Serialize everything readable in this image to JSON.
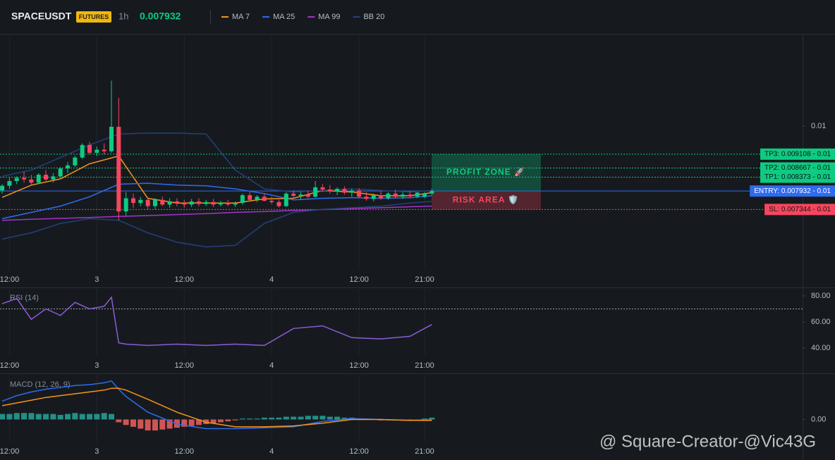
{
  "header": {
    "symbol": "SPACEUSDT",
    "badge": "FUTURES",
    "interval": "1h",
    "last_price": 0.007932
  },
  "watermark": "@ Square-Creator-@Vic43G",
  "chart_data": [
    {
      "type": "candlestick",
      "xlim": [
        -1.3,
        108.9
      ],
      "ylim": [
        0.00542,
        0.0129
      ],
      "xticks": [
        {
          "value": 0,
          "label": "12:00"
        },
        {
          "value": 12,
          "label": "3"
        },
        {
          "value": 24,
          "label": "12:00"
        },
        {
          "value": 36,
          "label": "4"
        },
        {
          "value": 48,
          "label": "12:00"
        },
        {
          "value": 57,
          "label": "21:00"
        }
      ],
      "yticks": [
        {
          "value": 0.01,
          "label": "0.01"
        }
      ],
      "up_color": "#0ecb81",
      "down_color": "#f6465d",
      "candles": {
        "x": [
          -1,
          0,
          1,
          2,
          3,
          4,
          5,
          6,
          7,
          8,
          9,
          10,
          11,
          12,
          13,
          14,
          15,
          16,
          17,
          18,
          19,
          20,
          21,
          22,
          23,
          24,
          25,
          26,
          27,
          28,
          29,
          30,
          31,
          32,
          33,
          34,
          35,
          36,
          37,
          38,
          39,
          40,
          41,
          42,
          43,
          44,
          45,
          46,
          47,
          48,
          49,
          50,
          51,
          52,
          53,
          54,
          55,
          56,
          57,
          58
        ],
        "open": [
          0.00795,
          0.0081,
          0.00825,
          0.00835,
          0.0083,
          0.0082,
          0.00845,
          0.0083,
          0.0084,
          0.00865,
          0.00875,
          0.009,
          0.0094,
          0.00915,
          0.00925,
          0.0092,
          0.00998,
          0.00728,
          0.0077,
          0.00755,
          0.00765,
          0.00745,
          0.00765,
          0.0075,
          0.0076,
          0.00755,
          0.0075,
          0.0076,
          0.00752,
          0.00758,
          0.0075,
          0.00756,
          0.0075,
          0.00755,
          0.0078,
          0.00765,
          0.00775,
          0.00762,
          0.00758,
          0.00745,
          0.00785,
          0.00778,
          0.00782,
          0.00775,
          0.00805,
          0.00798,
          0.00792,
          0.008,
          0.00788,
          0.00795,
          0.00775,
          0.00768,
          0.0078,
          0.0077,
          0.00785,
          0.00775,
          0.00782,
          0.00776,
          0.00775,
          0.00785
        ],
        "high": [
          0.00815,
          0.00835,
          0.0084,
          0.00855,
          0.00845,
          0.0085,
          0.0086,
          0.0085,
          0.0087,
          0.00885,
          0.00905,
          0.00945,
          0.0095,
          0.00935,
          0.00945,
          0.01145,
          0.0109,
          0.0079,
          0.00785,
          0.00775,
          0.0077,
          0.0077,
          0.00775,
          0.0077,
          0.0077,
          0.00765,
          0.00768,
          0.0077,
          0.00765,
          0.00768,
          0.00762,
          0.00765,
          0.0076,
          0.00785,
          0.0079,
          0.0078,
          0.00785,
          0.00775,
          0.00765,
          0.0079,
          0.00795,
          0.0079,
          0.00795,
          0.00825,
          0.00815,
          0.00812,
          0.00805,
          0.00808,
          0.008,
          0.00802,
          0.0079,
          0.00785,
          0.00795,
          0.0079,
          0.00798,
          0.0079,
          0.00792,
          0.0079,
          0.0079,
          0.008
        ],
        "low": [
          0.00785,
          0.008,
          0.00815,
          0.0082,
          0.0081,
          0.00815,
          0.00825,
          0.0082,
          0.00835,
          0.0085,
          0.0087,
          0.00895,
          0.0091,
          0.00905,
          0.0091,
          0.00915,
          0.007,
          0.00715,
          0.0074,
          0.00745,
          0.00735,
          0.00735,
          0.00745,
          0.0074,
          0.00745,
          0.0074,
          0.00742,
          0.00745,
          0.00745,
          0.00742,
          0.00744,
          0.00745,
          0.00742,
          0.0075,
          0.0076,
          0.00758,
          0.0076,
          0.00752,
          0.0074,
          0.00742,
          0.0077,
          0.00765,
          0.0077,
          0.00772,
          0.0079,
          0.00785,
          0.0078,
          0.00782,
          0.00775,
          0.0077,
          0.00762,
          0.0076,
          0.00765,
          0.00765,
          0.0077,
          0.00768,
          0.0077,
          0.0077,
          0.0077,
          0.0078
        ],
        "close": [
          0.0081,
          0.00825,
          0.00835,
          0.0083,
          0.0082,
          0.00845,
          0.0083,
          0.0084,
          0.00865,
          0.00875,
          0.009,
          0.0094,
          0.00915,
          0.00925,
          0.0092,
          0.00998,
          0.00728,
          0.0077,
          0.00755,
          0.00765,
          0.00745,
          0.00765,
          0.0075,
          0.0076,
          0.00755,
          0.0075,
          0.0076,
          0.00752,
          0.00758,
          0.0075,
          0.00756,
          0.0075,
          0.00755,
          0.0078,
          0.00765,
          0.00775,
          0.00762,
          0.00758,
          0.00745,
          0.00785,
          0.00778,
          0.00782,
          0.00775,
          0.00805,
          0.00798,
          0.00792,
          0.008,
          0.00788,
          0.00795,
          0.00775,
          0.00768,
          0.0078,
          0.0077,
          0.00785,
          0.00775,
          0.00782,
          0.00776,
          0.00788,
          0.00785,
          0.007932
        ]
      },
      "series": [
        {
          "name": "MA 7",
          "color": "#f7931a",
          "x": [
            -1,
            3,
            7,
            11,
            15,
            19,
            23,
            27,
            31,
            35,
            39,
            43,
            47,
            51,
            55,
            58
          ],
          "values": [
            0.00773,
            0.00812,
            0.00832,
            0.0088,
            0.00905,
            0.0077,
            0.00755,
            0.00755,
            0.00755,
            0.00768,
            0.0077,
            0.00795,
            0.0079,
            0.00778,
            0.00778,
            0.00788
          ]
        },
        {
          "name": "MA 25",
          "color": "#2f6bf0",
          "x": [
            -1,
            3,
            7,
            11,
            15,
            19,
            23,
            27,
            31,
            35,
            39,
            43,
            47,
            51,
            55,
            58
          ],
          "values": [
            0.00705,
            0.00725,
            0.00745,
            0.00775,
            0.00815,
            0.00818,
            0.00812,
            0.0081,
            0.008,
            0.00785,
            0.00765,
            0.0077,
            0.00772,
            0.0077,
            0.00772,
            0.00778
          ]
        },
        {
          "name": "MA 99",
          "color": "#a334c9",
          "x": [
            -1,
            3,
            7,
            11,
            15,
            19,
            23,
            27,
            31,
            35,
            39,
            43,
            47,
            51,
            55,
            58
          ],
          "values": [
            0.007,
            0.00703,
            0.00706,
            0.00709,
            0.00712,
            0.00715,
            0.00718,
            0.00721,
            0.00725,
            0.00728,
            0.00731,
            0.00734,
            0.00737,
            0.0074,
            0.00743,
            0.00745
          ]
        },
        {
          "name": "BB 20",
          "color": "#24407a",
          "x": [
            -1,
            3,
            7,
            11,
            15,
            19,
            23,
            27,
            31,
            35,
            39,
            43,
            47,
            51,
            55,
            58
          ],
          "values": [
            0.0084,
            0.0086,
            0.009,
            0.0094,
            0.00975,
            0.00978,
            0.00978,
            0.00975,
            0.0086,
            0.008,
            0.0079,
            0.00795,
            0.008,
            0.00795,
            0.0079,
            0.00795
          ],
          "lower": [
            0.0064,
            0.0066,
            0.0069,
            0.00705,
            0.007,
            0.0066,
            0.0063,
            0.00615,
            0.0062,
            0.0069,
            0.00725,
            0.00735,
            0.0074,
            0.00745,
            0.00755,
            0.0076
          ]
        }
      ],
      "levels": [
        {
          "label": "TP3: 0.009108 - 0.01",
          "value": 0.009108,
          "color": "#0ecb81",
          "style": "dotted"
        },
        {
          "label": "TP2: 0.008667 - 0.01",
          "value": 0.008667,
          "color": "#0ecb81",
          "style": "dotted"
        },
        {
          "label": "TP1: 0.008373 - 0.01",
          "value": 0.008373,
          "color": "#0ecb81",
          "style": "dotted"
        },
        {
          "label": "ENTRY: 0.007932 - 0.01",
          "value": 0.007932,
          "color": "#2f6bf0",
          "style": "solid"
        },
        {
          "label": "SL: 0.007344 - 0.01",
          "value": 0.007344,
          "color": "#f6465d",
          "style": "dotted"
        }
      ],
      "zones": [
        {
          "label": "PROFIT ZONE 🚀",
          "from": 0.007932,
          "to": 0.009108,
          "color": "#0ecb81"
        },
        {
          "label": "RISK AREA 🛡️",
          "from": 0.007344,
          "to": 0.007932,
          "color": "#f6465d"
        }
      ]
    },
    {
      "type": "line",
      "title": "RSI (14)",
      "xlim": [
        -1.3,
        108.9
      ],
      "ylim": [
        34.1,
        85.4
      ],
      "xticks": [
        {
          "value": 0,
          "label": "12:00"
        },
        {
          "value": 12,
          "label": "3"
        },
        {
          "value": 24,
          "label": "12:00"
        },
        {
          "value": 36,
          "label": "4"
        },
        {
          "value": 48,
          "label": "12:00"
        },
        {
          "value": 57,
          "label": "21:00"
        }
      ],
      "yticks": [
        {
          "value": 80,
          "label": "80.00"
        },
        {
          "value": 60,
          "label": "60.00"
        },
        {
          "value": 40,
          "label": "40.00"
        }
      ],
      "ref_line": 70,
      "series": [
        {
          "color": "#8e5bd6",
          "x": [
            -1,
            1,
            3,
            5,
            7,
            9,
            11,
            13,
            14,
            15,
            16,
            19,
            23,
            27,
            31,
            35,
            39,
            43,
            47,
            51,
            55,
            58
          ],
          "values": [
            74,
            78,
            62,
            70,
            65,
            75,
            70,
            72,
            79,
            44,
            43,
            42,
            43,
            42,
            43,
            42,
            55,
            57,
            48,
            47,
            49,
            58
          ]
        }
      ]
    },
    {
      "type": "macd",
      "title": "MACD (12, 26, 9)",
      "xlim": [
        -1.3,
        108.9
      ],
      "ylim": [
        -0.00025,
        0.00048
      ],
      "xticks": [
        {
          "value": 0,
          "label": "12:00"
        },
        {
          "value": 12,
          "label": "3"
        },
        {
          "value": 24,
          "label": "12:00"
        },
        {
          "value": 36,
          "label": "4"
        },
        {
          "value": 48,
          "label": "12:00"
        },
        {
          "value": 57,
          "label": "21:00"
        }
      ],
      "yticks": [
        {
          "value": 0,
          "label": "0.00"
        }
      ],
      "series": [
        {
          "color": "#2f6bf0",
          "x": [
            -1,
            1,
            3,
            5,
            7,
            9,
            11,
            13,
            14,
            15,
            16,
            19,
            23,
            27,
            31,
            35,
            39,
            43,
            47,
            51,
            55,
            58
          ],
          "values": [
            0.0002,
            0.00026,
            0.0003,
            0.00033,
            0.00035,
            0.00037,
            0.00038,
            0.0004,
            0.00042,
            0.00033,
            0.00025,
            8e-05,
            -5e-05,
            -0.0001,
            -0.0001,
            -9e-05,
            -8e-05,
            -2e-05,
            1e-05,
            0,
            -1e-05,
            0
          ]
        },
        {
          "color": "#f7931a",
          "x": [
            -1,
            1,
            3,
            5,
            7,
            9,
            11,
            13,
            14,
            15,
            16,
            19,
            23,
            27,
            31,
            35,
            39,
            43,
            47,
            51,
            55,
            58
          ],
          "values": [
            0.00015,
            0.00018,
            0.00021,
            0.00024,
            0.00026,
            0.00028,
            0.0003,
            0.00032,
            0.00034,
            0.00034,
            0.00032,
            0.00022,
            8e-05,
            -3e-05,
            -8e-05,
            -8e-05,
            -7e-05,
            -4e-05,
            0,
            0,
            -1e-05,
            -1e-05
          ]
        }
      ],
      "histogram": {
        "up_color": "#26a69a",
        "down_color": "#f0605d",
        "x": [
          -1,
          0,
          1,
          2,
          3,
          4,
          5,
          6,
          7,
          8,
          9,
          10,
          11,
          12,
          13,
          14,
          15,
          16,
          17,
          18,
          19,
          20,
          21,
          22,
          23,
          24,
          25,
          26,
          27,
          28,
          29,
          30,
          31,
          32,
          33,
          34,
          35,
          36,
          37,
          38,
          39,
          40,
          41,
          42,
          43,
          44,
          45,
          46,
          47,
          48,
          49,
          50,
          51,
          52,
          53,
          54,
          55,
          56,
          57,
          58
        ],
        "values": [
          6e-05,
          6e-05,
          7e-05,
          7e-05,
          7e-05,
          6e-05,
          6e-05,
          6e-05,
          5e-05,
          6e-05,
          7e-05,
          6e-05,
          6e-05,
          6e-05,
          7e-05,
          6e-05,
          -3e-05,
          -6e-05,
          -8e-05,
          -0.0001,
          -0.00012,
          -0.00012,
          -0.00011,
          -0.0001,
          -9e-05,
          -8e-05,
          -7e-05,
          -6e-05,
          -5e-05,
          -4e-05,
          -3e-05,
          -2e-05,
          -1e-05,
          1e-05,
          1e-05,
          1e-05,
          2e-05,
          2e-05,
          2e-05,
          3e-05,
          3e-05,
          3e-05,
          4e-05,
          4e-05,
          4e-05,
          3e-05,
          3e-05,
          2e-05,
          2e-05,
          1e-05,
          1e-05,
          0,
          -1e-05,
          -1e-05,
          -1e-05,
          -1e-05,
          -1e-05,
          -1e-05,
          1e-05,
          2e-05
        ]
      }
    }
  ]
}
